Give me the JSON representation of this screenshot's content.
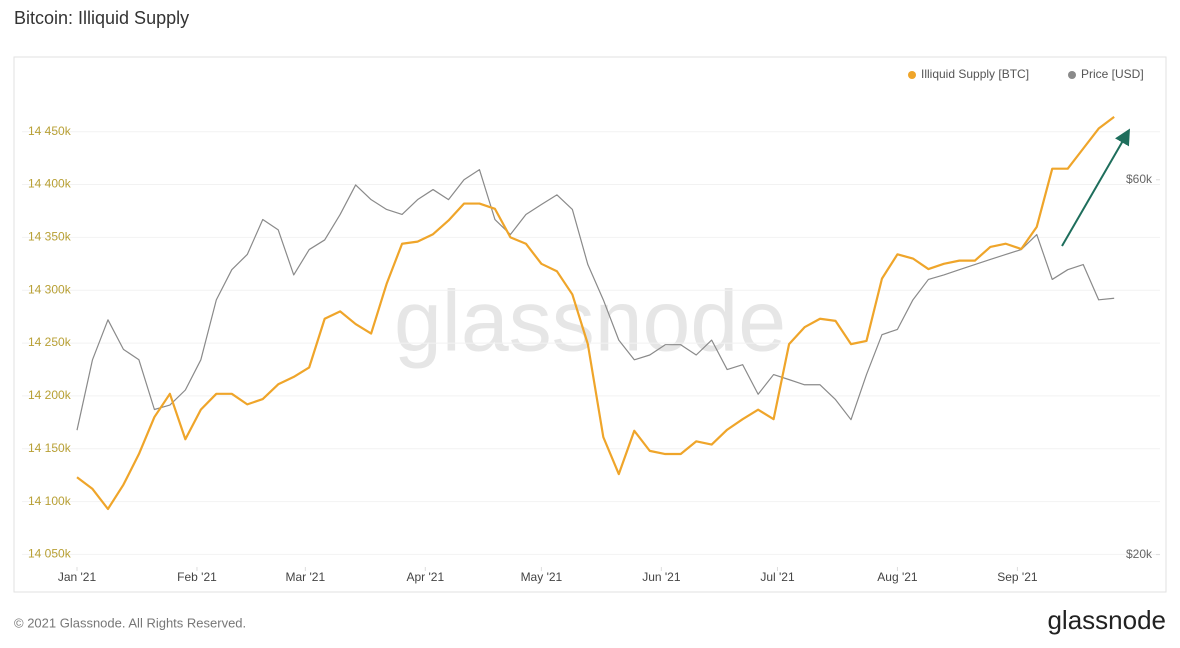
{
  "title": "Bitcoin: Illiquid Supply",
  "footer": "© 2021 Glassnode. All Rights Reserved.",
  "logo": "glassnode",
  "chart_data": {
    "type": "line",
    "watermark": "glassnode",
    "x": [
      0,
      4,
      8,
      12,
      16,
      20,
      24,
      28,
      32,
      36,
      40,
      44,
      48,
      52,
      56,
      60,
      64,
      68,
      72,
      76,
      80,
      84,
      88,
      92,
      96,
      100,
      104,
      108,
      112,
      116,
      120,
      124,
      128,
      132,
      136,
      140,
      144,
      148,
      152,
      156,
      160,
      164,
      168,
      172,
      176,
      180,
      184,
      188,
      192,
      196,
      200,
      204,
      208,
      212,
      216,
      220,
      224,
      228,
      232,
      236,
      240,
      244,
      248,
      252,
      256,
      260,
      264,
      268
    ],
    "xlim": [
      0,
      275
    ],
    "xticks": [
      {
        "value": 0,
        "label": "Jan '21"
      },
      {
        "value": 31,
        "label": "Feb '21"
      },
      {
        "value": 59,
        "label": "Mar '21"
      },
      {
        "value": 90,
        "label": "Apr '21"
      },
      {
        "value": 120,
        "label": "May '21"
      },
      {
        "value": 151,
        "label": "Jun '21"
      },
      {
        "value": 181,
        "label": "Jul '21"
      },
      {
        "value": 212,
        "label": "Aug '21"
      },
      {
        "value": 243,
        "label": "Sep '21"
      }
    ],
    "ylim": [
      14040000,
      14480000
    ],
    "yticks": [
      {
        "value": 14050000,
        "label": "14 050k"
      },
      {
        "value": 14100000,
        "label": "14 100k"
      },
      {
        "value": 14150000,
        "label": "14 150k"
      },
      {
        "value": 14200000,
        "label": "14 200k"
      },
      {
        "value": 14250000,
        "label": "14 250k"
      },
      {
        "value": 14300000,
        "label": "14 300k"
      },
      {
        "value": 14350000,
        "label": "14 350k"
      },
      {
        "value": 14400000,
        "label": "14 400k"
      },
      {
        "value": 14450000,
        "label": "14 450k"
      }
    ],
    "y2lim": [
      19400,
      75800
    ],
    "y2log": true,
    "y2ticks": [
      {
        "value": 20000,
        "label": "$20k"
      },
      {
        "value": 60000,
        "label": "$60k"
      }
    ],
    "grid": true,
    "legend": "top-right",
    "series": [
      {
        "name": "Illiquid Supply [BTC]",
        "color": "#efa52a",
        "values": [
          14123000,
          14112000,
          14093000,
          14116000,
          14145000,
          14180000,
          14202000,
          14159000,
          14187000,
          14202000,
          14202000,
          14192000,
          14197000,
          14211000,
          14218000,
          14227000,
          14273000,
          14280000,
          14268000,
          14259000,
          14306000,
          14344000,
          14346000,
          14353000,
          14366000,
          14382000,
          14382000,
          14377000,
          14350000,
          14344000,
          14325000,
          14318000,
          14296000,
          14249000,
          14161000,
          14126000,
          14167000,
          14148000,
          14145000,
          14145000,
          14157000,
          14154000,
          14168000,
          14178000,
          14187000,
          14178000,
          14249000,
          14265000,
          14273000,
          14271000,
          14249000,
          14252000,
          14311000,
          14334000,
          14330000,
          14320000,
          14325000,
          14328000,
          14328000,
          14341000,
          14344000,
          14339000,
          14360000,
          14415000,
          14415000,
          14434000,
          14453000,
          14464000
        ]
      },
      {
        "name": "Price [USD]",
        "color": "#8a8a8a",
        "axis": "y2",
        "values": [
          28800,
          35400,
          39800,
          36500,
          35400,
          30600,
          31000,
          32400,
          35400,
          42200,
          46100,
          48200,
          53400,
          51800,
          45400,
          48900,
          50300,
          54200,
          59100,
          56600,
          55000,
          54200,
          56600,
          58300,
          56600,
          60000,
          61800,
          53400,
          51100,
          54200,
          55800,
          57400,
          55000,
          46800,
          42200,
          37500,
          35400,
          35900,
          37000,
          37000,
          35900,
          37500,
          34400,
          34900,
          32000,
          33900,
          33400,
          32900,
          32900,
          31500,
          29700,
          33900,
          38100,
          38700,
          42200,
          44800,
          45400,
          46100,
          46800,
          47500,
          48200,
          48900,
          51100,
          44800,
          46100,
          46800,
          42200,
          42400
        ]
      }
    ]
  }
}
